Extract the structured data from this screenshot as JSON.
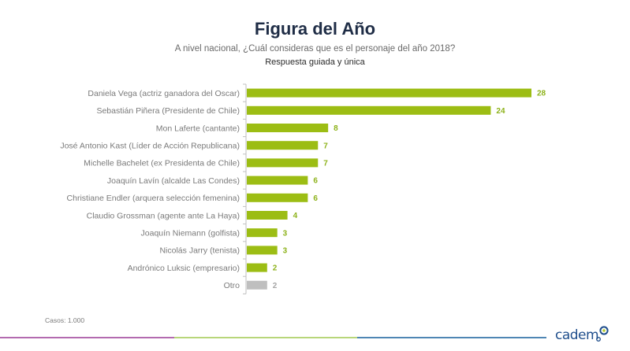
{
  "header": {
    "title": "Figura del Año",
    "subtitle": "A nivel nacional, ¿Cuál consideras que es el personaje del año 2018?",
    "note": "Respuesta guiada y única"
  },
  "footer": {
    "cases": "Casos: 1.000",
    "logo_text": "cadem",
    "stripe_colors": [
      "#b36bb0",
      "#b8d67a",
      "#4f86b4"
    ]
  },
  "colors": {
    "bar_main": "#9cbd14",
    "bar_other": "#bfbfbf",
    "value_main": "#8db21a",
    "value_other": "#a6a6a6",
    "logo_blue": "#1f4e8c",
    "logo_green": "#b5cc2e"
  },
  "chart_data": {
    "type": "bar",
    "orientation": "horizontal",
    "title": "Figura del Año",
    "subtitle": "A nivel nacional, ¿Cuál consideras que es el personaje del año 2018?",
    "xlabel": "",
    "ylabel": "",
    "xlim": [
      0,
      28
    ],
    "grid": false,
    "categories": [
      "Daniela Vega (actriz ganadora del Oscar)",
      "Sebastián Piñera (Presidente de Chile)",
      "Mon Laferte (cantante)",
      "José Antonio Kast (Líder de Acción Republicana)",
      "Michelle Bachelet (ex Presidenta de Chile)",
      "Joaquín Lavín (alcalde Las Condes)",
      "Christiane Endler (arquera selección femenina)",
      "Claudio Grossman (agente ante La Haya)",
      "Joaquín Niemann (golfista)",
      "Nicolás Jarry (tenista)",
      "Andrónico Luksic (empresario)",
      "Otro"
    ],
    "values": [
      28,
      24,
      8,
      7,
      7,
      6,
      6,
      4,
      3,
      3,
      2,
      2
    ],
    "value_labels": [
      "28",
      "24",
      "8",
      "7",
      "7",
      "6",
      "6",
      "4",
      "3",
      "3",
      "2",
      "2"
    ],
    "highlight": [
      true,
      true,
      true,
      true,
      true,
      true,
      true,
      true,
      true,
      true,
      true,
      false
    ]
  }
}
